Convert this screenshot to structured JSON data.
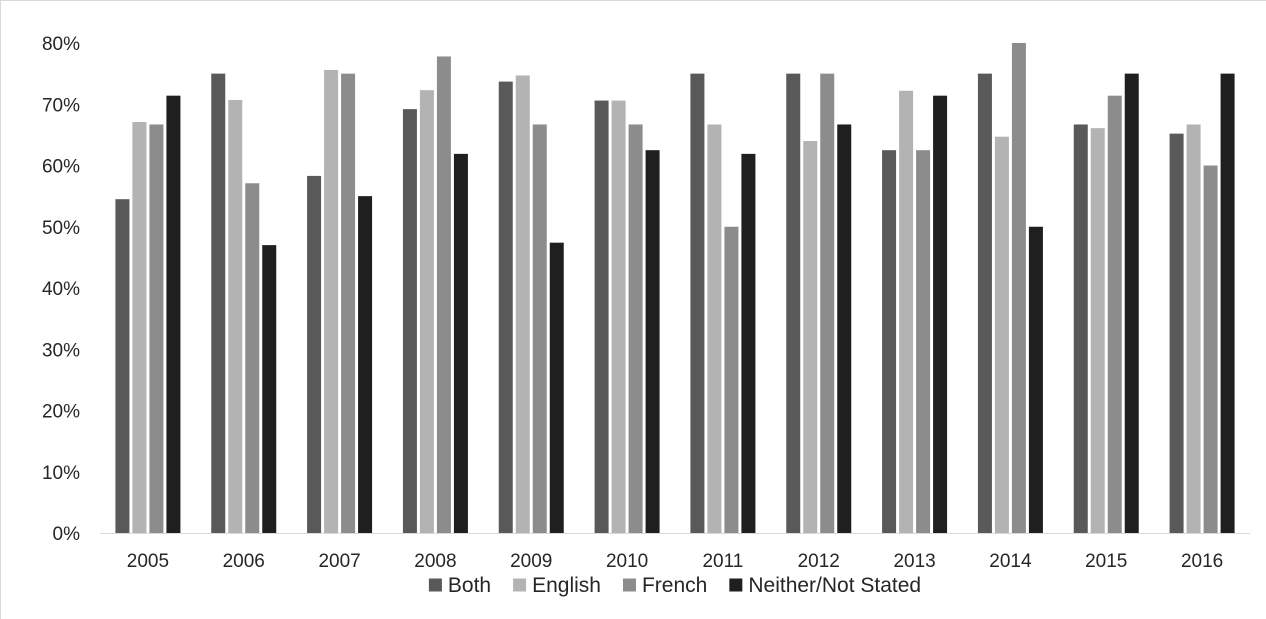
{
  "chart_data": {
    "type": "bar",
    "title": "",
    "xlabel": "",
    "ylabel": "",
    "categories": [
      "2005",
      "2006",
      "2007",
      "2008",
      "2009",
      "2010",
      "2011",
      "2012",
      "2013",
      "2014",
      "2015",
      "2016"
    ],
    "ylim": [
      0,
      80
    ],
    "yticks": [
      "0%",
      "10%",
      "20%",
      "30%",
      "40%",
      "50%",
      "60%",
      "70%",
      "80%"
    ],
    "grid": false,
    "legend_position": "bottom",
    "series": [
      {
        "name": "Both",
        "color": "#595959",
        "values": [
          54.5,
          75,
          58.3,
          69.2,
          73.7,
          70.6,
          75,
          75,
          62.5,
          75,
          66.7,
          65.2
        ]
      },
      {
        "name": "English",
        "color": "#b3b3b3",
        "values": [
          67.1,
          70.7,
          75.6,
          72.3,
          74.7,
          70.6,
          66.7,
          64,
          72.2,
          64.7,
          66.1,
          66.7
        ]
      },
      {
        "name": "French",
        "color": "#8c8c8c",
        "values": [
          66.7,
          57.1,
          75,
          77.8,
          66.7,
          66.7,
          50,
          75,
          62.5,
          80,
          71.4,
          60
        ]
      },
      {
        "name": "Neither/Not Stated",
        "color": "#1f1f1f",
        "values": [
          71.4,
          47,
          55,
          61.9,
          47.4,
          62.5,
          61.9,
          66.7,
          71.4,
          50,
          75,
          75
        ]
      }
    ]
  }
}
